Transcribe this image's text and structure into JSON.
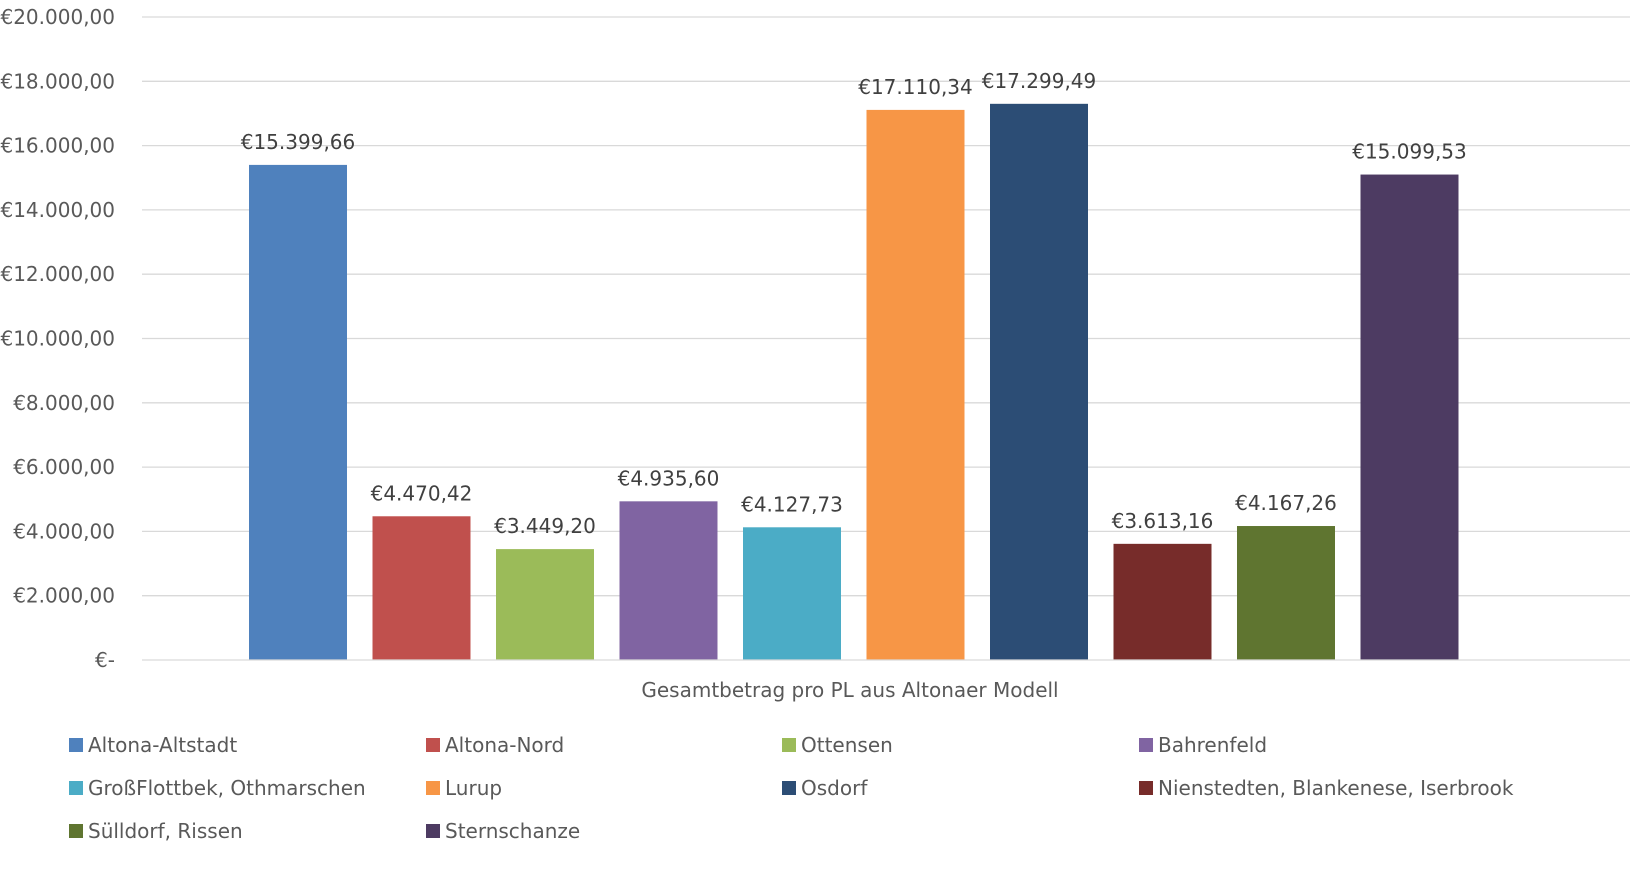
{
  "chart_data": {
    "type": "bar",
    "title": "",
    "xlabel": "Gesamtbetrag pro PL aus Altonaer Modell",
    "ylabel": "",
    "ylim": [
      0,
      20000
    ],
    "y_tick_step": 2000,
    "y_ticks": [
      "€-",
      "€2.000,00",
      "€4.000,00",
      "€6.000,00",
      "€8.000,00",
      "€10.000,00",
      "€12.000,00",
      "€14.000,00",
      "€16.000,00",
      "€18.000,00",
      "€20.000,00"
    ],
    "grid": true,
    "legend_position": "bottom",
    "categories": [
      "Gesamtbetrag pro PL aus Altonaer Modell"
    ],
    "series": [
      {
        "name": "Altona-Altstadt",
        "values": [
          15399.66
        ],
        "label": "€15.399,66",
        "color": "#4F81BD"
      },
      {
        "name": "Altona-Nord",
        "values": [
          4470.42
        ],
        "label": "€4.470,42",
        "color": "#C0504D"
      },
      {
        "name": "Ottensen",
        "values": [
          3449.2
        ],
        "label": "€3.449,20",
        "color": "#9BBB59"
      },
      {
        "name": "Bahrenfeld",
        "values": [
          4935.6
        ],
        "label": "€4.935,60",
        "color": "#8064A2"
      },
      {
        "name": "GroßFlottbek, Othmarschen",
        "values": [
          4127.73
        ],
        "label": "€4.127,73",
        "color": "#4BACC6"
      },
      {
        "name": "Lurup",
        "values": [
          17110.34
        ],
        "label": "€17.110,34",
        "color": "#F79646"
      },
      {
        "name": "Osdorf",
        "values": [
          17299.49
        ],
        "label": "€17.299,49",
        "color": "#2C4D75"
      },
      {
        "name": "Nienstedten, Blankenese, Iserbrook",
        "values": [
          3613.16
        ],
        "label": "€3.613,16",
        "color": "#772C2A"
      },
      {
        "name": "Sülldorf, Rissen",
        "values": [
          4167.26
        ],
        "label": "€4.167,26",
        "color": "#5F7530"
      },
      {
        "name": "Sternschanze",
        "values": [
          15099.53
        ],
        "label": "€15.099,53",
        "color": "#4D3B62"
      }
    ]
  }
}
